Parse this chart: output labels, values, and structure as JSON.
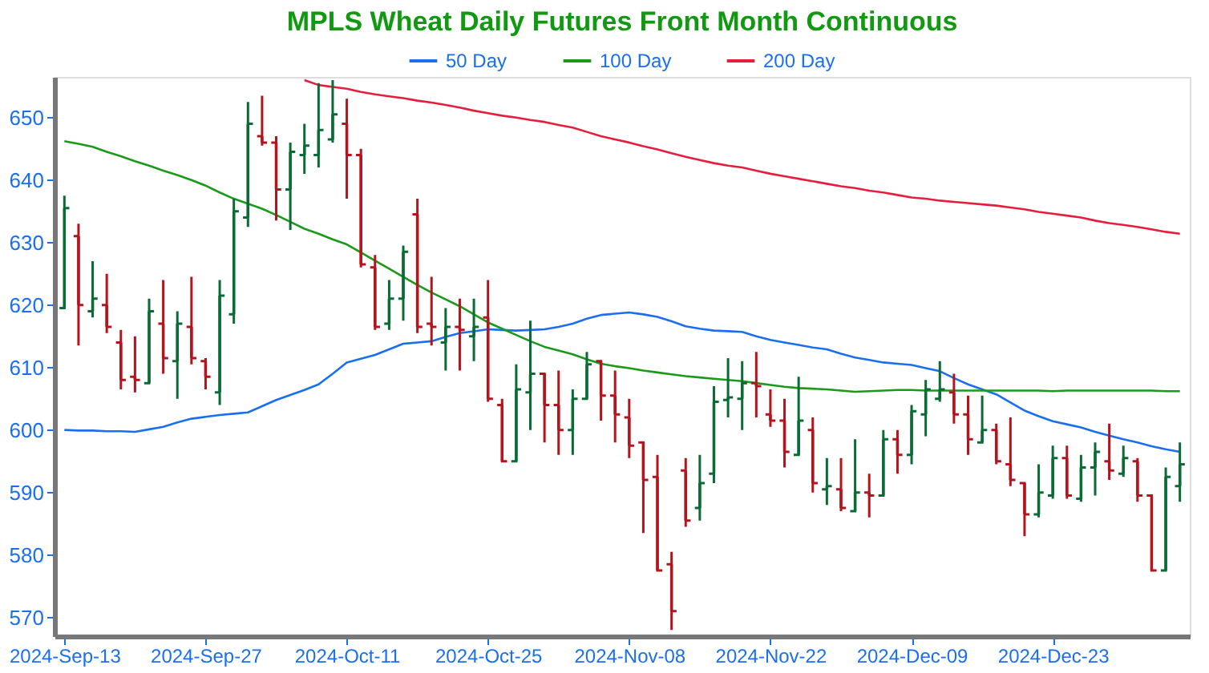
{
  "chart_data": {
    "type": "candlestick",
    "title": "MPLS Wheat Daily Futures Front Month Continuous",
    "categories": [
      "2024-Sep-13",
      null,
      null,
      null,
      null,
      null,
      null,
      null,
      null,
      null,
      "2024-Sep-27",
      null,
      null,
      null,
      null,
      null,
      null,
      null,
      null,
      null,
      "2024-Oct-11",
      null,
      null,
      null,
      null,
      null,
      null,
      null,
      null,
      null,
      "2024-Oct-25",
      null,
      null,
      null,
      null,
      null,
      null,
      null,
      null,
      null,
      "2024-Nov-08",
      null,
      null,
      null,
      null,
      null,
      null,
      null,
      null,
      null,
      "2024-Nov-22",
      null,
      null,
      null,
      null,
      null,
      null,
      null,
      null,
      null,
      "2024-Dec-09",
      null,
      null,
      null,
      null,
      null,
      null,
      null,
      null,
      null,
      "2024-Dec-23",
      null,
      null,
      null,
      null,
      null,
      null,
      null,
      null,
      null
    ],
    "ohlc": [
      [
        619.5,
        637.5,
        619.5,
        635.5
      ],
      [
        631,
        633,
        613.5,
        620
      ],
      [
        619,
        627,
        618,
        621
      ],
      [
        620,
        625,
        615.5,
        616.5
      ],
      [
        614,
        616,
        606.5,
        608
      ],
      [
        608.5,
        615,
        606,
        608
      ],
      [
        607.5,
        621,
        607.5,
        619
      ],
      [
        617,
        624,
        609,
        611.5
      ],
      [
        611,
        619,
        605,
        617
      ],
      [
        616.5,
        624.5,
        610.5,
        611.5
      ],
      [
        611,
        611.5,
        606.5,
        608.5
      ],
      [
        606,
        624,
        604,
        621.5
      ],
      [
        618.5,
        637,
        617,
        635
      ],
      [
        634,
        652.5,
        632.5,
        649
      ],
      [
        647,
        653.5,
        645.5,
        646
      ],
      [
        646,
        647,
        633.5,
        638.5
      ],
      [
        638.5,
        646,
        632,
        644.5
      ],
      [
        644,
        649,
        641,
        645.5
      ],
      [
        644,
        655.5,
        642,
        648
      ],
      [
        646.5,
        656,
        646,
        650.5
      ],
      [
        649,
        653,
        637,
        644
      ],
      [
        644,
        645,
        626,
        626.5
      ],
      [
        626,
        628,
        616,
        616.5
      ],
      [
        617,
        624,
        616,
        621
      ],
      [
        621,
        629.5,
        617.5,
        628.5
      ],
      [
        634.5,
        637,
        615.5,
        616.5
      ],
      [
        617,
        624.5,
        613.5,
        616.5
      ],
      [
        614,
        619.5,
        609.5,
        616.5
      ],
      [
        616.5,
        621,
        609.5,
        616
      ],
      [
        615,
        621,
        611,
        616.5
      ],
      [
        618,
        624,
        604.5,
        605
      ],
      [
        604,
        605,
        595,
        595
      ],
      [
        595,
        610.5,
        595,
        606.5
      ],
      [
        606,
        617.5,
        600,
        609
      ],
      [
        609,
        609,
        598,
        604
      ],
      [
        604,
        609.5,
        596,
        600
      ],
      [
        600,
        606.5,
        596,
        605
      ],
      [
        605,
        612.5,
        605,
        610.5
      ],
      [
        611,
        611,
        601.5,
        605.5
      ],
      [
        605.5,
        609.5,
        598,
        602.5
      ],
      [
        602,
        605,
        595.5,
        597.5
      ],
      [
        598,
        598,
        583.5,
        592
      ],
      [
        592.5,
        596,
        577.5,
        577.5
      ],
      [
        578.5,
        580.5,
        568,
        571
      ],
      [
        593.5,
        595.5,
        584.5,
        585.5
      ],
      [
        587.5,
        596,
        585.5,
        591.5
      ],
      [
        593,
        607,
        591.5,
        604.5
      ],
      [
        604.8,
        611.5,
        602,
        605.2
      ],
      [
        605,
        611,
        600,
        607.5
      ],
      [
        607.5,
        612.5,
        602,
        607
      ],
      [
        602.5,
        606.5,
        600.5,
        601.5
      ],
      [
        601.5,
        605,
        594,
        596.5
      ],
      [
        596,
        608.5,
        596,
        601.5
      ],
      [
        600,
        602,
        590,
        591.5
      ],
      [
        590.5,
        595.5,
        588,
        591
      ],
      [
        590.5,
        595.5,
        587,
        587.5
      ],
      [
        587,
        598.5,
        587,
        590
      ],
      [
        590,
        593,
        586,
        589.5
      ],
      [
        589.5,
        600,
        589.5,
        598.5
      ],
      [
        598.5,
        600,
        593,
        596
      ],
      [
        596,
        604,
        594.5,
        603
      ],
      [
        602.5,
        608,
        599,
        606.5
      ],
      [
        605,
        611,
        604.5,
        606.5
      ],
      [
        606,
        609,
        601,
        602.5
      ],
      [
        602.5,
        605.5,
        596,
        598.5
      ],
      [
        598,
        605.5,
        598,
        600
      ],
      [
        600,
        601,
        594.5,
        595
      ],
      [
        594.5,
        602,
        591,
        592
      ],
      [
        591.5,
        591.5,
        583,
        586.5
      ],
      [
        586.5,
        594.5,
        586,
        590
      ],
      [
        589.5,
        597.5,
        589,
        595.5
      ],
      [
        595.5,
        597.5,
        589,
        589.5
      ],
      [
        589,
        596,
        588.5,
        594
      ],
      [
        594,
        598,
        589.5,
        596.5
      ],
      [
        595,
        601,
        592,
        593.5
      ],
      [
        593,
        597.5,
        592.5,
        595.5
      ],
      [
        595,
        595.5,
        588.5,
        589.5
      ],
      [
        589.5,
        589.5,
        577.5,
        577.5
      ],
      [
        577.5,
        594,
        577.5,
        592.5
      ],
      [
        591,
        598,
        588.5,
        594.5
      ]
    ],
    "colors": [
      "#0a6b35",
      "#b3151f",
      "#0a6b35",
      "#b3151f",
      "#b3151f",
      "#b3151f",
      "#0a6b35",
      "#b3151f",
      "#0a6b35",
      "#b3151f",
      "#b3151f",
      "#0a6b35",
      "#0a6b35",
      "#0a6b35",
      "#b3151f",
      "#b3151f",
      "#0a6b35",
      "#0a6b35",
      "#0a6b35",
      "#0a6b35",
      "#b3151f",
      "#b3151f",
      "#b3151f",
      "#0a6b35",
      "#0a6b35",
      "#b3151f",
      "#b3151f",
      "#0a6b35",
      "#b3151f",
      "#0a6b35",
      "#b3151f",
      "#b3151f",
      "#0a6b35",
      "#0a6b35",
      "#b3151f",
      "#b3151f",
      "#0a6b35",
      "#0a6b35",
      "#b3151f",
      "#b3151f",
      "#b3151f",
      "#b3151f",
      "#b3151f",
      "#b3151f",
      "#b3151f",
      "#0a6b35",
      "#0a6b35",
      "#0a6b35",
      "#0a6b35",
      "#b3151f",
      "#b3151f",
      "#b3151f",
      "#0a6b35",
      "#b3151f",
      "#0a6b35",
      "#b3151f",
      "#0a6b35",
      "#b3151f",
      "#0a6b35",
      "#b3151f",
      "#0a6b35",
      "#0a6b35",
      "#0a6b35",
      "#b3151f",
      "#b3151f",
      "#0a6b35",
      "#b3151f",
      "#b3151f",
      "#b3151f",
      "#0a6b35",
      "#0a6b35",
      "#b3151f",
      "#0a6b35",
      "#0a6b35",
      "#b3151f",
      "#0a6b35",
      "#b3151f",
      "#b3151f",
      "#0a6b35",
      "#0a6b35"
    ],
    "series": [
      {
        "name": "50 Day",
        "color": "#1a6ff0",
        "type": "line",
        "values": [
          600.0,
          599.9,
          599.9,
          599.8,
          599.8,
          599.7,
          600.1,
          600.5,
          601.2,
          601.8,
          602.1,
          602.4,
          602.6,
          602.8,
          603.8,
          604.8,
          605.6,
          606.4,
          607.3,
          609.0,
          610.8,
          611.4,
          612.0,
          612.9,
          613.8,
          614.0,
          614.2,
          614.9,
          615.5,
          615.8,
          616.1,
          616.0,
          615.9,
          616.0,
          616.1,
          616.5,
          617.0,
          617.8,
          618.4,
          618.6,
          618.8,
          618.5,
          618.1,
          617.4,
          616.6,
          616.2,
          615.9,
          615.8,
          615.7,
          615.0,
          614.4,
          614.0,
          613.6,
          613.2,
          612.9,
          612.2,
          611.6,
          611.2,
          610.8,
          610.6,
          610.4,
          609.9,
          609.4,
          608.3,
          607.3,
          606.5,
          605.7,
          604.4,
          603.1,
          602.2,
          601.4,
          600.9,
          600.4,
          599.7,
          599.1,
          598.5,
          598.0,
          597.4,
          596.9,
          596.5
        ]
      },
      {
        "name": "100 Day",
        "color": "#1a9a1a",
        "type": "line",
        "values": [
          646.2,
          645.8,
          645.3,
          644.5,
          643.8,
          643.0,
          642.3,
          641.5,
          640.8,
          640.0,
          639.1,
          638.0,
          637.0,
          636.2,
          635.4,
          634.4,
          633.3,
          632.2,
          631.4,
          630.5,
          629.7,
          628.4,
          627.1,
          625.8,
          624.5,
          623.2,
          622.0,
          620.9,
          619.8,
          618.5,
          617.2,
          616.2,
          615.2,
          614.2,
          613.3,
          612.7,
          612.1,
          611.3,
          610.6,
          610.2,
          609.9,
          609.5,
          609.2,
          608.9,
          608.6,
          608.4,
          608.2,
          608.0,
          607.8,
          607.5,
          607.2,
          606.9,
          606.7,
          606.6,
          606.5,
          606.3,
          606.1,
          606.2,
          606.3,
          606.4,
          606.4,
          606.3,
          606.3,
          606.3,
          606.3,
          606.3,
          606.3,
          606.3,
          606.3,
          606.3,
          606.2,
          606.3,
          606.3,
          606.3,
          606.3,
          606.3,
          606.3,
          606.3,
          606.2,
          606.2
        ]
      },
      {
        "name": "200 Day",
        "color": "#e41e3c",
        "type": "line",
        "values": [
          null,
          null,
          null,
          null,
          null,
          null,
          null,
          null,
          null,
          null,
          null,
          null,
          null,
          null,
          null,
          null,
          null,
          656.0,
          655.2,
          654.9,
          654.6,
          654.1,
          653.7,
          653.4,
          653.1,
          652.7,
          652.4,
          652.0,
          651.6,
          651.1,
          650.7,
          650.3,
          650.0,
          649.6,
          649.3,
          648.8,
          648.4,
          647.7,
          647.0,
          646.5,
          646.0,
          645.4,
          644.9,
          644.3,
          643.7,
          643.2,
          642.7,
          642.3,
          642.0,
          641.5,
          641.0,
          640.6,
          640.2,
          639.8,
          639.4,
          639.0,
          638.7,
          638.3,
          638.0,
          637.6,
          637.2,
          637.0,
          636.7,
          636.5,
          636.3,
          636.1,
          635.9,
          635.6,
          635.3,
          634.9,
          634.6,
          634.3,
          634.0,
          633.5,
          633.1,
          632.8,
          632.5,
          632.1,
          631.7,
          631.4
        ]
      }
    ],
    "ylim": [
      567,
      656.5
    ],
    "yticks": [
      570,
      580,
      590,
      600,
      610,
      620,
      630,
      640,
      650
    ],
    "grid": false,
    "legend": "top"
  }
}
